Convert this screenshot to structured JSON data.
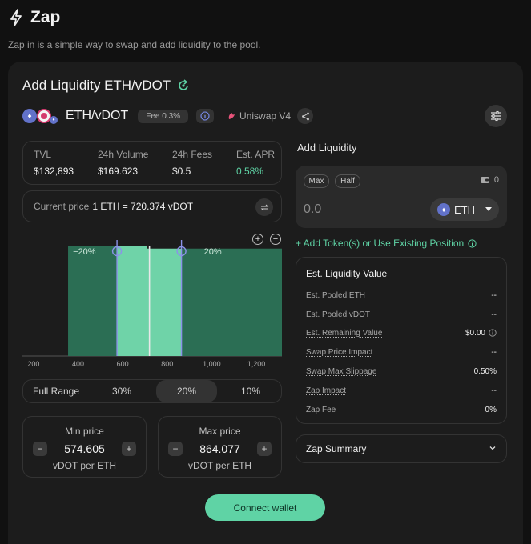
{
  "header": {
    "title": "Zap",
    "subtitle": "Zap in is a simple way to swap and add liquidity to the pool."
  },
  "card": {
    "title": "Add Liquidity ETH/vDOT"
  },
  "pool": {
    "pair": "ETH/vDOT",
    "fee": "Fee 0.3%",
    "protocol": "Uniswap V4"
  },
  "stats": [
    {
      "label": "TVL",
      "value": "$132,893"
    },
    {
      "label": "24h Volume",
      "value": "$169.623"
    },
    {
      "label": "24h Fees",
      "value": "$0.5"
    },
    {
      "label": "Est. APR",
      "value": "0.58%"
    }
  ],
  "current_price": {
    "label": "Current price",
    "value": "1 ETH = 720.374 vDOT"
  },
  "chart_data": {
    "type": "area",
    "x_ticks": [
      200,
      400,
      600,
      800,
      1000,
      1200
    ],
    "x_tick_labels": [
      "200",
      "400",
      "600",
      "800",
      "1,000",
      "1,200"
    ],
    "xlim": [
      150,
      1315
    ],
    "liquidity_segments": [
      {
        "from": 355,
        "to": 574.605,
        "height": 1.0
      },
      {
        "from": 574.605,
        "to": 710,
        "height": 1.0
      },
      {
        "from": 710,
        "to": 864.077,
        "height": 0.98
      },
      {
        "from": 864.077,
        "to": 1315,
        "height": 0.98
      }
    ],
    "selected_range": [
      574.605,
      864.077
    ],
    "current_price": 720.374,
    "left_label": "−20%",
    "right_label": "20%",
    "colors": {
      "outside": "#2b6e54",
      "selected": "#6fd3a8",
      "current": "#e8e8e8",
      "handle": "#8b92e8"
    }
  },
  "ranges": [
    "Full Range",
    "30%",
    "20%",
    "10%"
  ],
  "active_range": "20%",
  "min_price": {
    "title": "Min price",
    "value": "574.605",
    "unit": "vDOT per ETH"
  },
  "max_price": {
    "title": "Max price",
    "value": "864.077",
    "unit": "vDOT per ETH"
  },
  "connect_label": "Connect wallet",
  "add_liquidity": {
    "title": "Add Liquidity",
    "max_label": "Max",
    "half_label": "Half",
    "balance": "0",
    "amount_placeholder": "0.0",
    "token": "ETH",
    "add_tokens_link": "+ Add Token(s) or Use Existing Position"
  },
  "estimate": {
    "title": "Est. Liquidity Value",
    "rows": [
      {
        "label": "Est. Pooled ETH",
        "value": "--"
      },
      {
        "label": "Est. Pooled vDOT",
        "value": "--"
      },
      {
        "label": "Est. Remaining Value",
        "value": "$0.00"
      },
      {
        "label": "Swap Price Impact",
        "value": "--"
      },
      {
        "label": "Swap Max Slippage",
        "value": "0.50%"
      },
      {
        "label": "Zap Impact",
        "value": "--"
      },
      {
        "label": "Zap Fee",
        "value": "0%"
      }
    ]
  },
  "zap_summary": "Zap Summary",
  "colors": {
    "accent": "#5fd3a5",
    "background": "#111111",
    "card": "#1c1c1c"
  }
}
